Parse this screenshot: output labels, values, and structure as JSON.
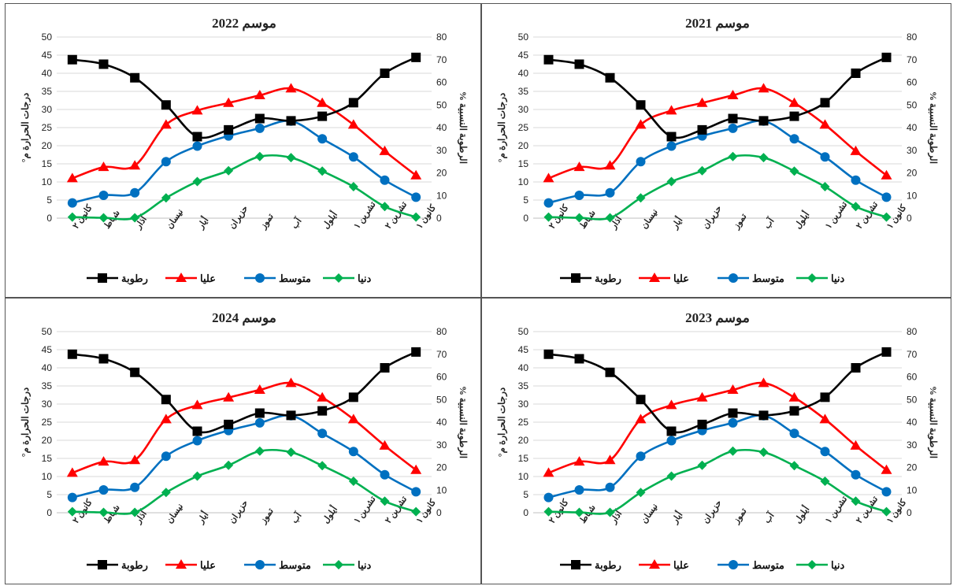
{
  "chart_data": [
    {
      "type": "line",
      "title": "موسم 2022",
      "categories": [
        "كانون ٢",
        "شباط",
        "آذار",
        "نيسان",
        "أيار",
        "حزيران",
        "تموز",
        "آب",
        "أيلول",
        "تشرين ١",
        "تشرين ٢",
        "كانون ١"
      ],
      "ylabel": "درجات الحرارة م°",
      "y2label": "الرطوبة النسبية %",
      "ylim": [
        0,
        50
      ],
      "y2lim": [
        0,
        80
      ],
      "series": [
        {
          "name": "دنيا",
          "axis": "left",
          "color": "#00b050",
          "marker": "diamond",
          "values": [
            0.3,
            0.1,
            0.1,
            5.6,
            10.1,
            13.1,
            17.0,
            16.7,
            13.0,
            8.7,
            3.2,
            0.3
          ]
        },
        {
          "name": "متوسط",
          "axis": "left",
          "color": "#0070c0",
          "marker": "circle",
          "values": [
            4.2,
            6.3,
            7.0,
            15.6,
            19.9,
            22.7,
            24.8,
            26.8,
            21.9,
            16.9,
            10.5,
            5.8
          ]
        },
        {
          "name": "عليا",
          "axis": "left",
          "color": "#ff0000",
          "marker": "triangle",
          "values": [
            11.0,
            14.1,
            14.5,
            25.8,
            29.7,
            31.8,
            33.9,
            35.8,
            31.8,
            25.8,
            18.5,
            11.8
          ]
        },
        {
          "name": "رطوبة",
          "axis": "right",
          "color": "#000000",
          "marker": "square",
          "values": [
            70,
            68,
            62,
            50,
            36,
            39,
            44,
            43,
            45,
            51,
            64,
            71
          ]
        }
      ]
    },
    {
      "type": "line",
      "title": "موسم 2021",
      "categories": [
        "كانون ٢",
        "شباط",
        "آذار",
        "نيسان",
        "أيار",
        "حزيران",
        "تموز",
        "آب",
        "أيلول",
        "تشرين ١",
        "تشرين ٢",
        "كانون ١"
      ],
      "ylabel": "درجات الحرارة م°",
      "y2label": "الرطوبة النسبية %",
      "ylim": [
        0,
        50
      ],
      "y2lim": [
        0,
        80
      ],
      "series": [
        {
          "name": "دنيا",
          "axis": "left",
          "color": "#00b050",
          "marker": "diamond",
          "values": [
            0.3,
            0.1,
            0.1,
            5.6,
            10.1,
            13.1,
            17.0,
            16.7,
            13.0,
            8.7,
            3.2,
            0.3
          ]
        },
        {
          "name": "متوسط",
          "axis": "left",
          "color": "#0070c0",
          "marker": "circle",
          "values": [
            4.2,
            6.3,
            7.0,
            15.6,
            19.9,
            22.7,
            24.8,
            26.8,
            21.9,
            16.9,
            10.5,
            5.8
          ]
        },
        {
          "name": "عليا",
          "axis": "left",
          "color": "#ff0000",
          "marker": "triangle",
          "values": [
            11.0,
            14.1,
            14.5,
            25.8,
            29.7,
            31.8,
            33.9,
            35.8,
            31.8,
            25.8,
            18.5,
            11.8
          ]
        },
        {
          "name": "رطوبة",
          "axis": "right",
          "color": "#000000",
          "marker": "square",
          "values": [
            70,
            68,
            62,
            50,
            36,
            39,
            44,
            43,
            45,
            51,
            64,
            71
          ]
        }
      ]
    },
    {
      "type": "line",
      "title": "موسم 2024",
      "categories": [
        "كانون ٢",
        "شباط",
        "آذار",
        "نيسان",
        "أيار",
        "حزيران",
        "تموز",
        "آب",
        "أيلول",
        "تشرين ١",
        "تشرين ٢",
        "كانون ١"
      ],
      "ylabel": "درجات الحرارة م°",
      "y2label": "الرطوبة النسبية %",
      "ylim": [
        0,
        50
      ],
      "y2lim": [
        0,
        80
      ],
      "series": [
        {
          "name": "دنيا",
          "axis": "left",
          "color": "#00b050",
          "marker": "diamond",
          "values": [
            0.3,
            0.1,
            0.1,
            5.6,
            10.1,
            13.1,
            17.0,
            16.7,
            13.0,
            8.7,
            3.2,
            0.3
          ]
        },
        {
          "name": "متوسط",
          "axis": "left",
          "color": "#0070c0",
          "marker": "circle",
          "values": [
            4.2,
            6.3,
            7.0,
            15.6,
            19.9,
            22.7,
            24.8,
            26.8,
            21.9,
            16.9,
            10.5,
            5.8
          ]
        },
        {
          "name": "عليا",
          "axis": "left",
          "color": "#ff0000",
          "marker": "triangle",
          "values": [
            11.0,
            14.1,
            14.5,
            25.8,
            29.7,
            31.8,
            33.9,
            35.8,
            31.8,
            25.8,
            18.5,
            11.8
          ]
        },
        {
          "name": "رطوبة",
          "axis": "right",
          "color": "#000000",
          "marker": "square",
          "values": [
            70,
            68,
            62,
            50,
            36,
            39,
            44,
            43,
            45,
            51,
            64,
            71
          ]
        }
      ]
    },
    {
      "type": "line",
      "title": "موسم 2023",
      "categories": [
        "كانون ٢",
        "شباط",
        "آذار",
        "نيسان",
        "أيار",
        "حزيران",
        "تموز",
        "آب",
        "أيلول",
        "تشرين ١",
        "تشرين ٢",
        "كانون ١"
      ],
      "ylabel": "درجات الحرارة م°",
      "y2label": "الرطوبة النسبية %",
      "ylim": [
        0,
        50
      ],
      "y2lim": [
        0,
        80
      ],
      "series": [
        {
          "name": "دنيا",
          "axis": "left",
          "color": "#00b050",
          "marker": "diamond",
          "values": [
            0.3,
            0.1,
            0.1,
            5.6,
            10.1,
            13.1,
            17.0,
            16.7,
            13.0,
            8.7,
            3.2,
            0.3
          ]
        },
        {
          "name": "متوسط",
          "axis": "left",
          "color": "#0070c0",
          "marker": "circle",
          "values": [
            4.2,
            6.3,
            7.0,
            15.6,
            19.9,
            22.7,
            24.8,
            26.8,
            21.9,
            16.9,
            10.5,
            5.8
          ]
        },
        {
          "name": "عليا",
          "axis": "left",
          "color": "#ff0000",
          "marker": "triangle",
          "values": [
            11.0,
            14.1,
            14.5,
            25.8,
            29.7,
            31.8,
            33.9,
            35.8,
            31.8,
            25.8,
            18.5,
            11.8
          ]
        },
        {
          "name": "رطوبة",
          "axis": "right",
          "color": "#000000",
          "marker": "square",
          "values": [
            70,
            68,
            62,
            50,
            36,
            39,
            44,
            43,
            45,
            51,
            64,
            71
          ]
        }
      ]
    }
  ]
}
